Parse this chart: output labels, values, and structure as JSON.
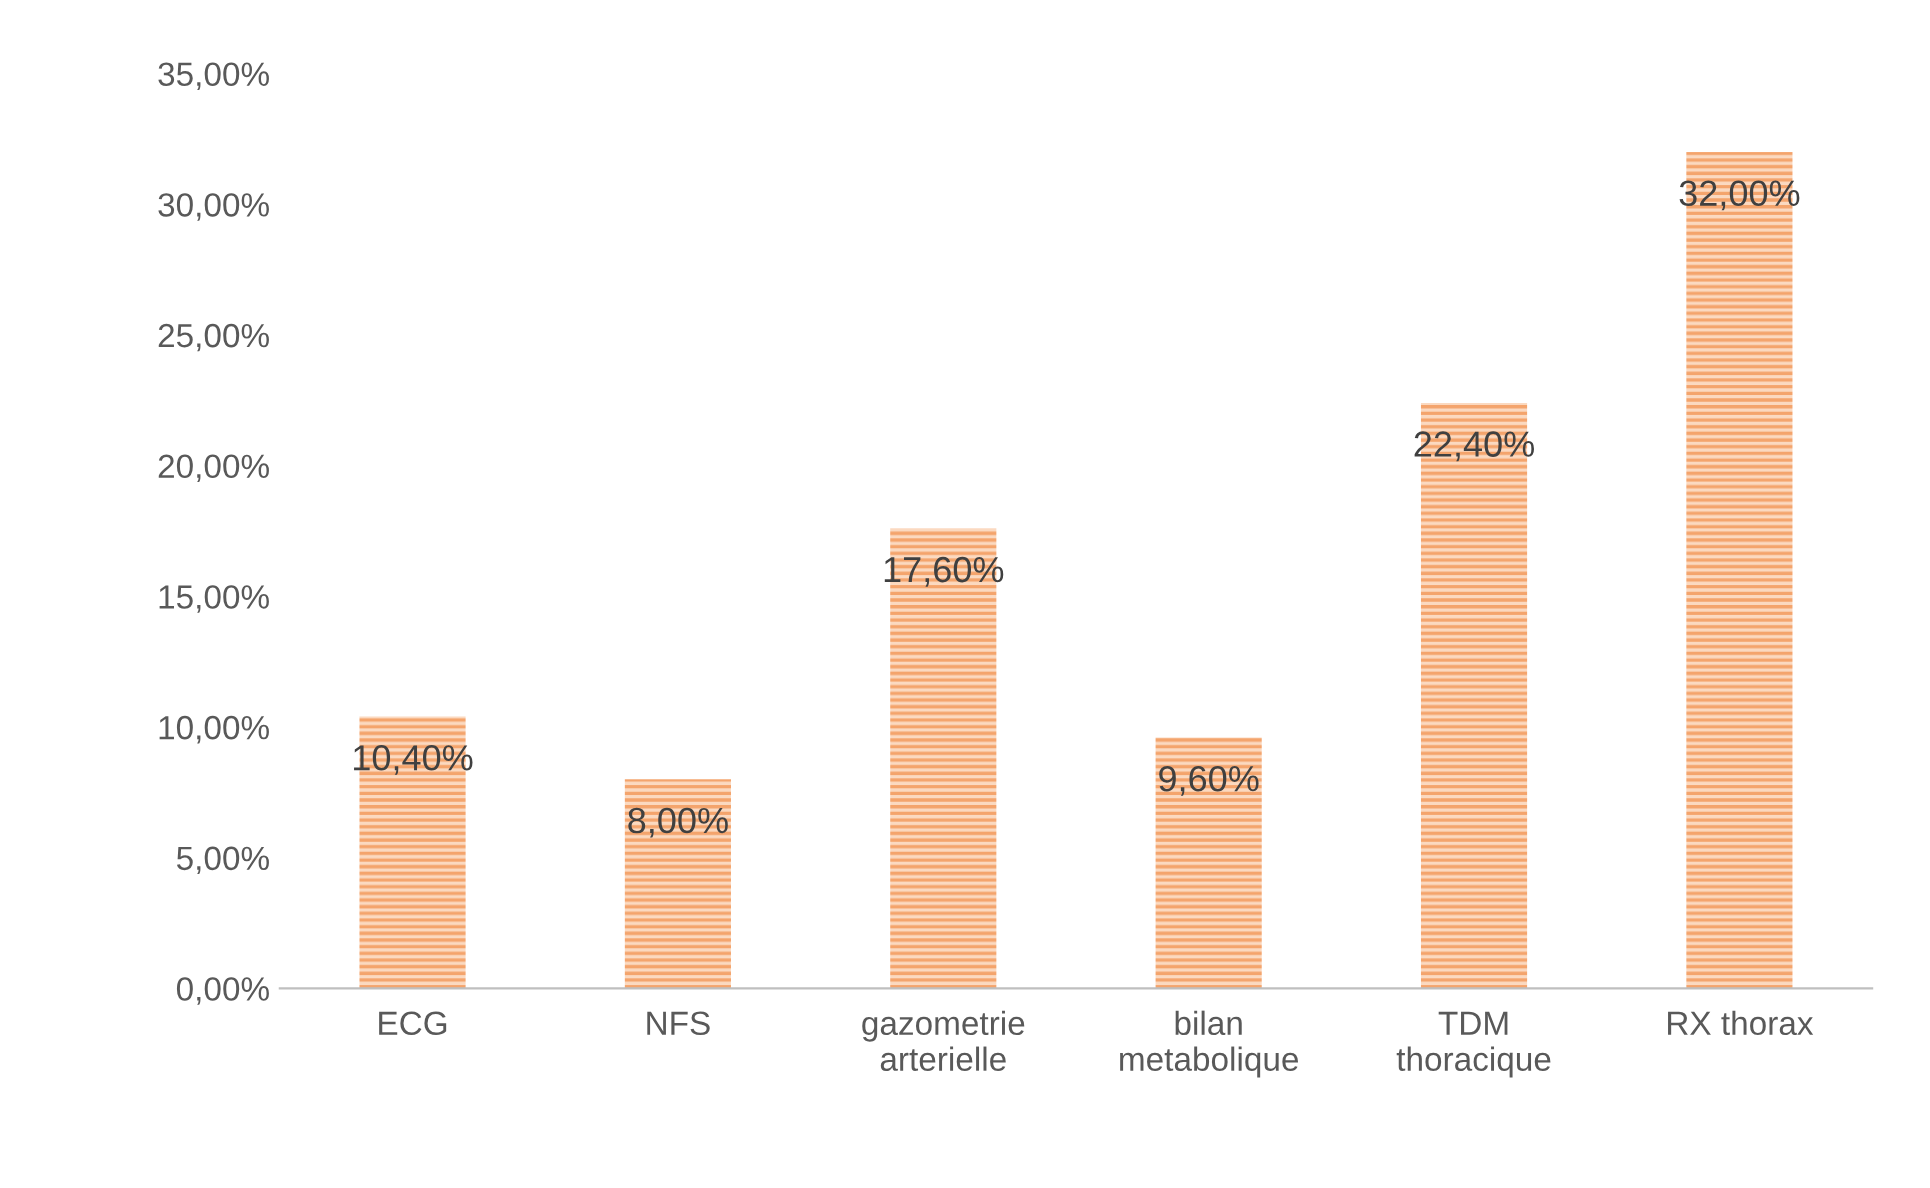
{
  "chart_data": {
    "type": "bar",
    "categories": [
      "ECG",
      "NFS",
      "gazometrie\narterielle",
      "bilan\nmetabolique",
      "TDM\nthoracique",
      "RX thorax"
    ],
    "values": [
      10.4,
      8.0,
      17.6,
      9.6,
      22.4,
      32.0
    ],
    "value_labels": [
      "10,40%",
      "8,00%",
      "17,60%",
      "9,60%",
      "22,40%",
      "32,00%"
    ],
    "color": "#f4a46c",
    "ylim": [
      0,
      35
    ],
    "yticks": [
      {
        "value": 0,
        "label": "0,00%"
      },
      {
        "value": 5,
        "label": "5,00%"
      },
      {
        "value": 10,
        "label": "10,00%"
      },
      {
        "value": 15,
        "label": "15,00%"
      },
      {
        "value": 20,
        "label": "20,00%"
      },
      {
        "value": 25,
        "label": "25,00%"
      },
      {
        "value": 30,
        "label": "30,00%"
      },
      {
        "value": 35,
        "label": "35,00%"
      }
    ],
    "grid": false,
    "legend": false
  }
}
